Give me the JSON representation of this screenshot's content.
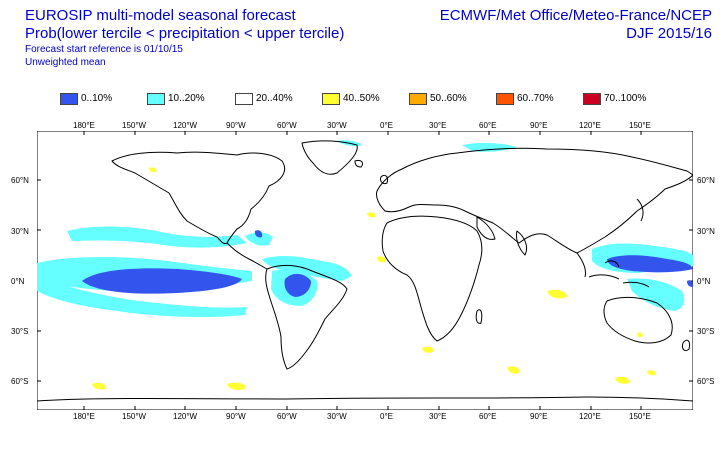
{
  "header": {
    "title_line1": "EUROSIP multi-model seasonal forecast",
    "title_line2": "Prob(lower tercile < precipitation < upper tercile)",
    "title_line3": "Forecast start reference is 01/10/15",
    "title_line4": "Unweighted mean",
    "centres": "ECMWF/Met Office/Meteo-France/NCEP",
    "season": "DJF 2015/16"
  },
  "legend": [
    {
      "label": "0..10%",
      "color": "#3355ee"
    },
    {
      "label": "10..20%",
      "color": "#66ffff"
    },
    {
      "label": "20..40%",
      "color": "#ffffff"
    },
    {
      "label": "40..50%",
      "color": "#ffff33"
    },
    {
      "label": "50..60%",
      "color": "#ffaa00"
    },
    {
      "label": "60..70%",
      "color": "#ff5500"
    },
    {
      "label": "70..100%",
      "color": "#cc0022"
    }
  ],
  "axes": {
    "lon_labels": [
      "180°E",
      "150°W",
      "120°W",
      "90°W",
      "60°W",
      "30°W",
      "0°E",
      "30°E",
      "60°E",
      "90°E",
      "120°E",
      "150°E"
    ],
    "lat_labels_left": [
      "60°N",
      "30°N",
      "0°N",
      "30°S",
      "60°S"
    ],
    "lat_labels_right": [
      "60°N",
      "30°N",
      "0°N",
      "30°S",
      "60°S"
    ]
  }
}
